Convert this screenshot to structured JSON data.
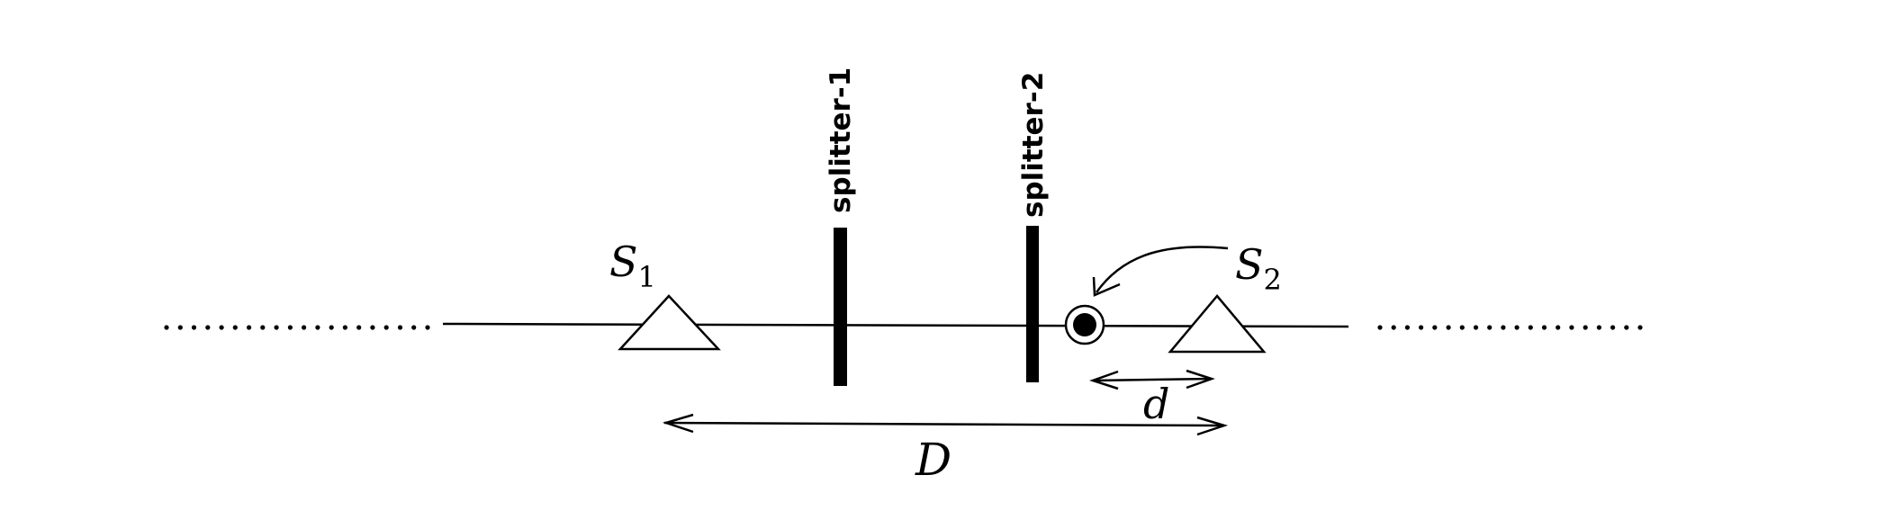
{
  "labels": {
    "splitter1": "splitter-1",
    "splitter2": "splitter-2",
    "s1_base": "S",
    "s1_sub": "1",
    "s2_base": "S",
    "s2_sub": "2",
    "small_distance": "d",
    "large_distance": "D"
  },
  "colors": {
    "ink": "#000000",
    "background": "#ffffff"
  }
}
